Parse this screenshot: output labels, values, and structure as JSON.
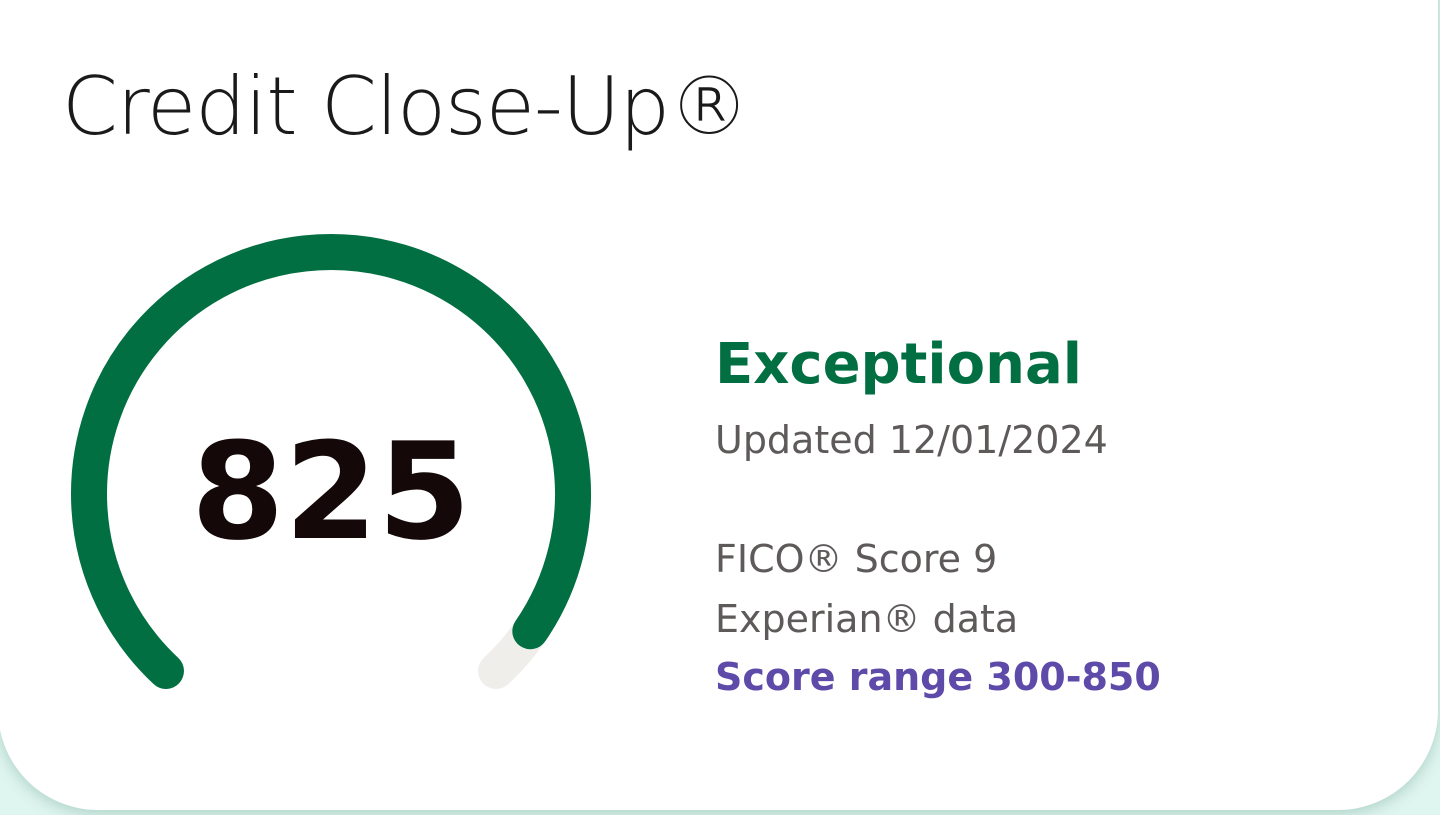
{
  "card": {
    "title": "Credit Close-Up®",
    "score": "825",
    "score_min": 300,
    "score_max": 850,
    "rating": "Exceptional",
    "updated": "Updated 12/01/2024",
    "model": "FICO® Score 9",
    "bureau": "Experian® data",
    "range_link": "Score range 300-850"
  },
  "colors": {
    "gauge_fill": "#016f42",
    "gauge_track": "#f0eeeb",
    "rating": "#016f42",
    "link": "#5e4aa8",
    "background": "#dff5ef"
  }
}
